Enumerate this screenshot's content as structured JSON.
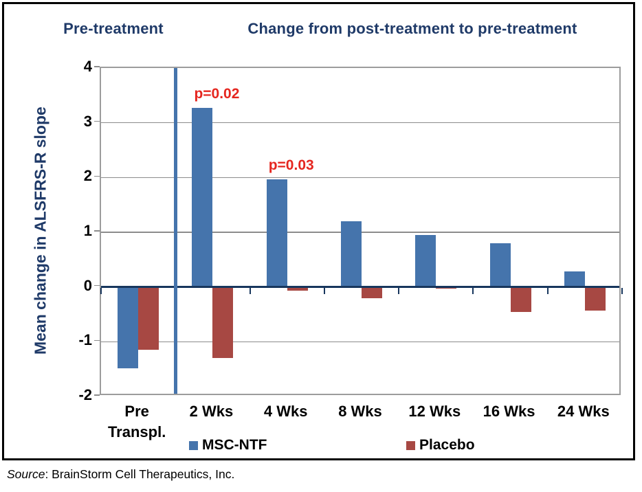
{
  "header": {
    "left_title": "Pre-treatment",
    "right_title": "Change from post-treatment to pre-treatment"
  },
  "source": {
    "label": "Source",
    "text": ": BrainStorm Cell Therapeutics, Inc."
  },
  "colors": {
    "title_navy": "#1F3A68",
    "axis_line_navy": "#17365D",
    "separator_blue": "#4574AC",
    "gridline_gray": "#8C8C8C",
    "annotation_red": "#E5261F",
    "msc_ntf_blue": "#4574AC",
    "placebo_red": "#A74843"
  },
  "chart_data": {
    "type": "bar",
    "title": "Change from post-treatment to pre-treatment",
    "categories": [
      "Pre\nTranspl.",
      "2 Wks",
      "4 Wks",
      "8 Wks",
      "12 Wks",
      "16 Wks",
      "24 Wks"
    ],
    "series": [
      {
        "name": "MSC-NTF",
        "color": "#4574AC",
        "values": [
          -1.48,
          3.27,
          1.97,
          1.2,
          0.95,
          0.8,
          0.28
        ]
      },
      {
        "name": "Placebo",
        "color": "#A74843",
        "values": [
          -1.15,
          -1.3,
          -0.07,
          -0.2,
          -0.03,
          -0.45,
          -0.43
        ]
      }
    ],
    "annotations": [
      {
        "text": "p=0.02",
        "category_index": 1,
        "value": 3.27,
        "color": "#E5261F"
      },
      {
        "text": "p=0.03",
        "category_index": 2,
        "value": 1.97,
        "color": "#E5261F"
      }
    ],
    "xlabel": "",
    "ylabel": "Mean change in ALSFRS-R slope",
    "ylim": [
      -2,
      4
    ],
    "y_ticks": [
      4,
      3,
      2,
      1,
      0,
      -1,
      -2
    ],
    "grid": true,
    "legend_position": "bottom",
    "separator_after_category_index": 0
  }
}
